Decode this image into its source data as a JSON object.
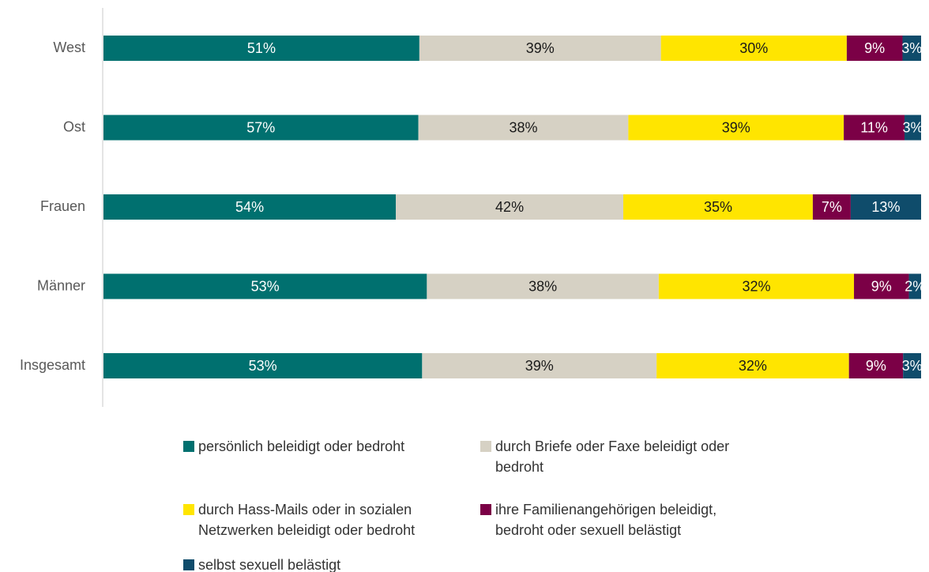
{
  "chart_data": {
    "type": "bar",
    "orientation": "horizontal",
    "stack": "percent",
    "categories": [
      "West",
      "Ost",
      "Frauen",
      "Männer",
      "Insgesamt"
    ],
    "series": [
      {
        "name": "persönlich beleidigt oder bedroht",
        "color": "#00706f",
        "label_color": "#ffffff",
        "values": [
          51,
          57,
          54,
          53,
          53
        ],
        "value_labels": [
          "51%",
          "57%",
          "54%",
          "53%",
          "53%"
        ]
      },
      {
        "name": "durch Briefe oder Faxe beleidigt oder bedroht",
        "color": "#d6d1c4",
        "label_color": "#1a1a1a",
        "values": [
          39,
          38,
          42,
          38,
          39
        ],
        "value_labels": [
          "39%",
          "38%",
          "42%",
          "38%",
          "39%"
        ]
      },
      {
        "name": "durch Hass-Mails oder in sozialen Netzwerken beleidigt oder bedroht",
        "color": "#ffe500",
        "label_color": "#1a1a1a",
        "values": [
          30,
          39,
          35,
          32,
          32
        ],
        "value_labels": [
          "30%",
          "39%",
          "35%",
          "32%",
          "32%"
        ]
      },
      {
        "name": "ihre Familienangehörigen beleidigt, bedroht oder sexuell belästigt",
        "color": "#7b0046",
        "label_color": "#ffffff",
        "values": [
          9,
          11,
          7,
          9,
          9
        ],
        "value_labels": [
          "9%",
          "11%",
          "7%",
          "9%",
          "9%"
        ]
      },
      {
        "name": "selbst sexuell belästigt",
        "color": "#0f4c6b",
        "label_color": "#ffffff",
        "values": [
          3,
          3,
          13,
          2,
          3
        ],
        "value_labels": [
          "3%",
          "3%",
          "13%",
          "2%",
          "3%"
        ]
      }
    ]
  }
}
